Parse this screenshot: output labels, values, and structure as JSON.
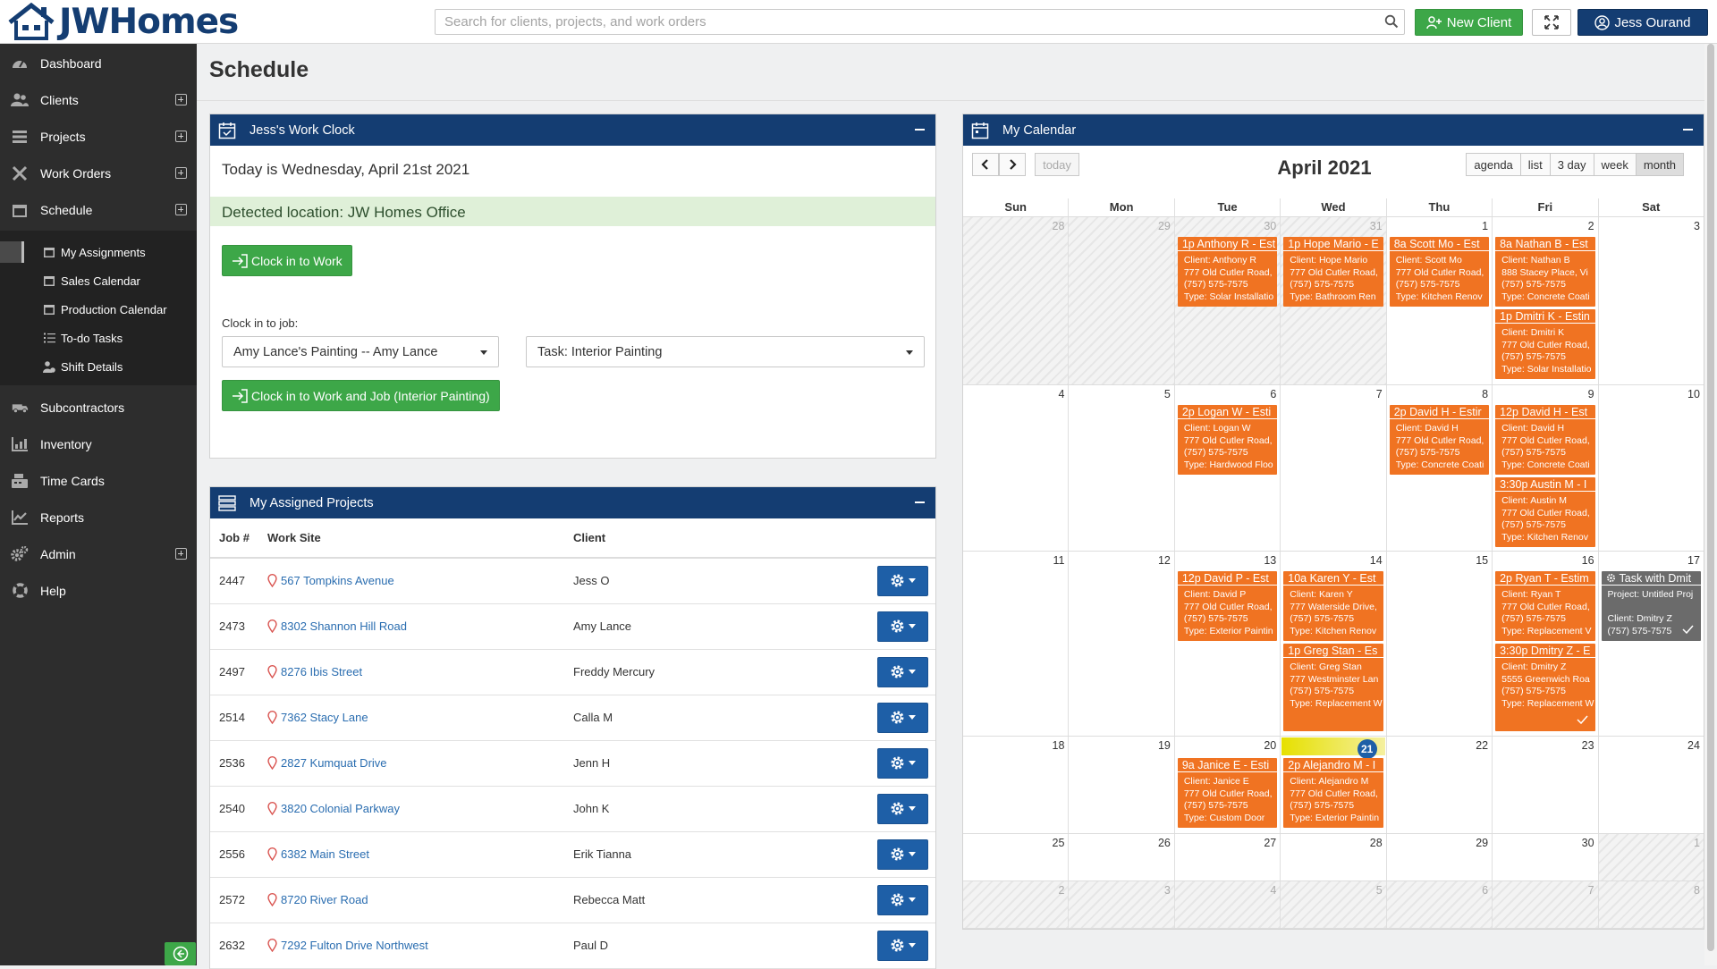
{
  "app": {
    "name": "JWHomes"
  },
  "header": {
    "search_placeholder": "Search for clients, projects, and work orders",
    "new_client_label": "New Client",
    "user_label": "Jess Ourand"
  },
  "sidebar": {
    "items": [
      {
        "label": "Dashboard"
      },
      {
        "label": "Clients"
      },
      {
        "label": "Projects"
      },
      {
        "label": "Work Orders"
      },
      {
        "label": "Schedule"
      },
      {
        "label": "Subcontractors"
      },
      {
        "label": "Inventory"
      },
      {
        "label": "Time Cards"
      },
      {
        "label": "Reports"
      },
      {
        "label": "Admin"
      },
      {
        "label": "Help"
      }
    ],
    "schedule_sub": [
      {
        "label": "My Assignments"
      },
      {
        "label": "Sales Calendar"
      },
      {
        "label": "Production Calendar"
      },
      {
        "label": "To-do Tasks"
      },
      {
        "label": "Shift Details"
      }
    ]
  },
  "page": {
    "title": "Schedule"
  },
  "work_clock": {
    "title": "Jess's Work Clock",
    "today_text": "Today is Wednesday, April 21st 2021",
    "location_text": "Detected location: JW Homes Office",
    "clock_in_label": "Clock in to Work",
    "clock_in_job_label": "Clock in to job:",
    "job_value": "Amy Lance's Painting -- Amy Lance",
    "task_value": "Task: Interior Painting",
    "clock_in_job_button": "Clock in to Work and Job (Interior Painting)"
  },
  "assigned_projects": {
    "title": "My Assigned Projects",
    "columns": [
      "Job #",
      "Work Site",
      "Client"
    ],
    "rows": [
      {
        "job": "2447",
        "site": "567 Tompkins Avenue",
        "client": "Jess O"
      },
      {
        "job": "2473",
        "site": "8302 Shannon Hill Road",
        "client": "Amy Lance"
      },
      {
        "job": "2497",
        "site": "8276 Ibis Street",
        "client": "Freddy Mercury"
      },
      {
        "job": "2514",
        "site": "7362 Stacy Lane",
        "client": "Calla M"
      },
      {
        "job": "2536",
        "site": "2827 Kumquat Drive",
        "client": "Jenn H"
      },
      {
        "job": "2540",
        "site": "3820 Colonial Parkway",
        "client": "John K"
      },
      {
        "job": "2556",
        "site": "6382 Main Street",
        "client": "Erik Tianna"
      },
      {
        "job": "2572",
        "site": "8720 River Road",
        "client": "Rebecca Matt"
      },
      {
        "job": "2632",
        "site": "7292 Fulton Drive Northwest",
        "client": "Paul D"
      }
    ]
  },
  "calendar": {
    "title": "My Calendar",
    "month_label": "April 2021",
    "today_label": "today",
    "views": [
      "agenda",
      "list",
      "3 day",
      "week",
      "month"
    ],
    "active_view": "month",
    "days_of_week": [
      "Sun",
      "Mon",
      "Tue",
      "Wed",
      "Thu",
      "Fri",
      "Sat"
    ],
    "today_date": "21",
    "weeks": [
      {
        "days": [
          {
            "d": "28",
            "o": true
          },
          {
            "d": "29",
            "o": true
          },
          {
            "d": "30",
            "o": true
          },
          {
            "d": "31",
            "o": true
          },
          {
            "d": "1"
          },
          {
            "d": "2"
          },
          {
            "d": "3"
          }
        ]
      },
      {
        "days": [
          {
            "d": "4"
          },
          {
            "d": "5"
          },
          {
            "d": "6"
          },
          {
            "d": "7"
          },
          {
            "d": "8"
          },
          {
            "d": "9"
          },
          {
            "d": "10"
          }
        ]
      },
      {
        "days": [
          {
            "d": "11"
          },
          {
            "d": "12"
          },
          {
            "d": "13"
          },
          {
            "d": "14"
          },
          {
            "d": "15"
          },
          {
            "d": "16"
          },
          {
            "d": "17"
          }
        ]
      },
      {
        "days": [
          {
            "d": "18"
          },
          {
            "d": "19"
          },
          {
            "d": "20"
          },
          {
            "d": "21",
            "t": true
          },
          {
            "d": "22"
          },
          {
            "d": "23"
          },
          {
            "d": "24"
          }
        ]
      },
      {
        "days": [
          {
            "d": "25"
          },
          {
            "d": "26"
          },
          {
            "d": "27"
          },
          {
            "d": "28"
          },
          {
            "d": "29"
          },
          {
            "d": "30"
          },
          {
            "d": "1",
            "o": true
          }
        ]
      },
      {
        "days": [
          {
            "d": "2",
            "o": true
          },
          {
            "d": "3",
            "o": true
          },
          {
            "d": "4",
            "o": true
          },
          {
            "d": "5",
            "o": true
          },
          {
            "d": "6",
            "o": true
          },
          {
            "d": "7",
            "o": true
          },
          {
            "d": "8",
            "o": true
          }
        ]
      }
    ],
    "events": [
      {
        "week": 0,
        "day": 2,
        "slot": 0,
        "title": "1p Anthony R - Est",
        "lines": [
          "Client: Anthony R",
          "777 Old Cutler Road,",
          "(757) 575-7575",
          "Type: Solar Installatio"
        ]
      },
      {
        "week": 0,
        "day": 3,
        "slot": 0,
        "title": "1p Hope Mario - E",
        "lines": [
          "Client: Hope Mario",
          "777 Old Cutler Road,",
          "(757) 575-7575",
          "Type: Bathroom Ren"
        ]
      },
      {
        "week": 0,
        "day": 4,
        "slot": 0,
        "title": "8a Scott Mo - Est",
        "lines": [
          "Client: Scott Mo",
          "777 Old Cutler Road,",
          "(757) 575-7575",
          "Type: Kitchen Renov"
        ]
      },
      {
        "week": 0,
        "day": 5,
        "slot": 0,
        "title": "8a Nathan B - Est",
        "lines": [
          "Client: Nathan B",
          "888 Stacey Place, Vi",
          "(757) 575-7575",
          "Type: Concrete Coati"
        ]
      },
      {
        "week": 0,
        "day": 5,
        "slot": 1,
        "title": "1p Dmitri K - Estin",
        "lines": [
          "Client: Dmitri K",
          "777 Old Cutler Road,",
          "(757) 575-7575",
          "Type: Solar Installatio"
        ]
      },
      {
        "week": 1,
        "day": 2,
        "slot": 0,
        "title": "2p Logan W - Esti",
        "lines": [
          "Client: Logan W",
          "777 Old Cutler Road,",
          "(757) 575-7575",
          "Type: Hardwood Floo"
        ]
      },
      {
        "week": 1,
        "day": 4,
        "slot": 0,
        "title": "2p David H - Estir",
        "lines": [
          "Client: David H",
          "777 Old Cutler Road,",
          "(757) 575-7575",
          "Type: Concrete Coati"
        ]
      },
      {
        "week": 1,
        "day": 5,
        "slot": 0,
        "title": "12p David H - Est",
        "lines": [
          "Client: David H",
          "777 Old Cutler Road,",
          "(757) 575-7575",
          "Type: Concrete Coati"
        ]
      },
      {
        "week": 1,
        "day": 5,
        "slot": 1,
        "title": "3:30p Austin M - I",
        "lines": [
          "Client: Austin M",
          "777 Old Cutler Road,",
          "(757) 575-7575",
          "Type: Kitchen Renov"
        ]
      },
      {
        "week": 2,
        "day": 2,
        "slot": 0,
        "title": "12p David P - Est",
        "lines": [
          "Client: David P",
          "777 Old Cutler Road,",
          "(757) 575-7575",
          "Type: Exterior Paintin"
        ]
      },
      {
        "week": 2,
        "day": 3,
        "slot": 0,
        "title": "10a Karen Y - Est",
        "lines": [
          "Client: Karen Y",
          "777 Waterside Drive,",
          "(757) 575-7575",
          "Type: Kitchen Renov"
        ]
      },
      {
        "week": 2,
        "day": 3,
        "slot": 1,
        "title": "1p Greg Stan - Es",
        "lines": [
          "Client: Greg Stan",
          "777 Westminster Lan",
          "(757) 575-7575",
          "Type: Replacement W"
        ]
      },
      {
        "week": 2,
        "day": 5,
        "slot": 0,
        "title": "2p Ryan T - Estim",
        "lines": [
          "Client: Ryan T",
          "777 Old Cutler Road,",
          "(757) 575-7575",
          "Type: Replacement V"
        ]
      },
      {
        "week": 2,
        "day": 5,
        "slot": 1,
        "title": "3:30p Dmitry Z - E",
        "lines": [
          "Client: Dmitry Z",
          "5555 Greenwich Roa",
          "(757) 575-7575",
          "Type: Replacement W"
        ],
        "check": true
      },
      {
        "week": 2,
        "day": 6,
        "slot": 0,
        "title": "Task with Dmit",
        "lines": [
          "Project: Untitled Proj",
          "",
          "Client: Dmitry Z",
          "(757) 575-7575"
        ],
        "task": true,
        "check": true
      },
      {
        "week": 3,
        "day": 2,
        "slot": 0,
        "title": "9a Janice E - Esti",
        "lines": [
          "Client: Janice E",
          "777 Old Cutler Road,",
          "(757) 575-7575",
          "Type: Custom Door"
        ]
      },
      {
        "week": 3,
        "day": 3,
        "slot": 0,
        "title": "2p Alejandro M - I",
        "lines": [
          "Client: Alejandro M",
          "777 Old Cutler Road,",
          "(757) 575-7575",
          "Type: Exterior Paintin"
        ]
      }
    ]
  }
}
